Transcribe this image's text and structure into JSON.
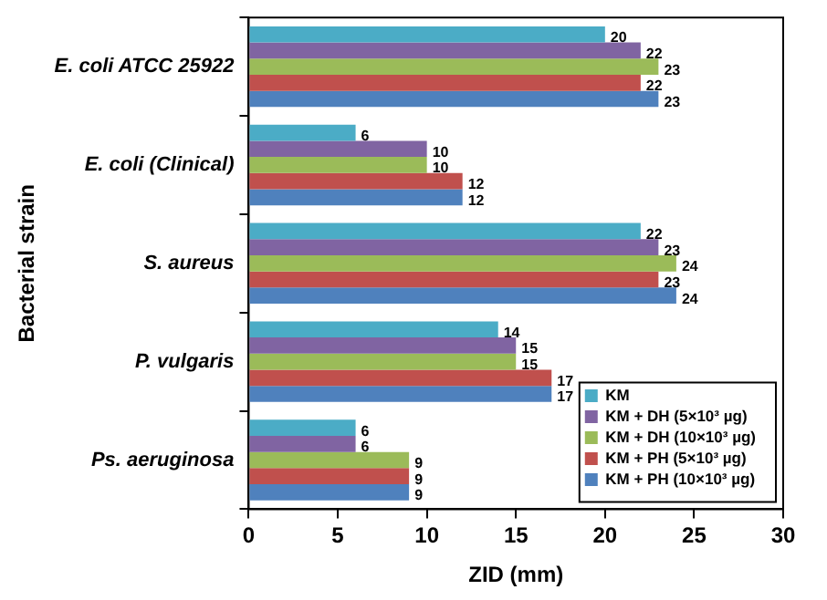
{
  "chart_data": {
    "type": "bar",
    "orientation": "horizontal",
    "xlabel": "ZID (mm)",
    "ylabel": "Bacterial strain",
    "categories": [
      "E. coli ATCC 25922",
      "E. coli (Clinical)",
      "S. aureus",
      "P. vulgaris",
      "Ps. aeruginosa"
    ],
    "series": [
      {
        "name": "KM",
        "color": "#4bacc6",
        "values": [
          20,
          6,
          22,
          14,
          6
        ]
      },
      {
        "name": "KM + DH (5×10³ µg)",
        "color": "#8064a2",
        "values": [
          22,
          10,
          23,
          15,
          6
        ]
      },
      {
        "name": "KM + DH (10×10³ µg)",
        "color": "#9bbb59",
        "values": [
          23,
          10,
          24,
          15,
          9
        ]
      },
      {
        "name": "KM + PH (5×10³ µg)",
        "color": "#c0504d",
        "values": [
          22,
          12,
          23,
          17,
          9
        ]
      },
      {
        "name": "KM + PH (10×10³ µg)",
        "color": "#4f81bd",
        "values": [
          23,
          12,
          24,
          17,
          9
        ]
      }
    ],
    "xlim": [
      0,
      30
    ],
    "xticks": [
      0,
      5,
      10,
      15,
      20,
      25,
      30
    ],
    "grid": false,
    "legend": "bottom right",
    "data_labels": true
  }
}
